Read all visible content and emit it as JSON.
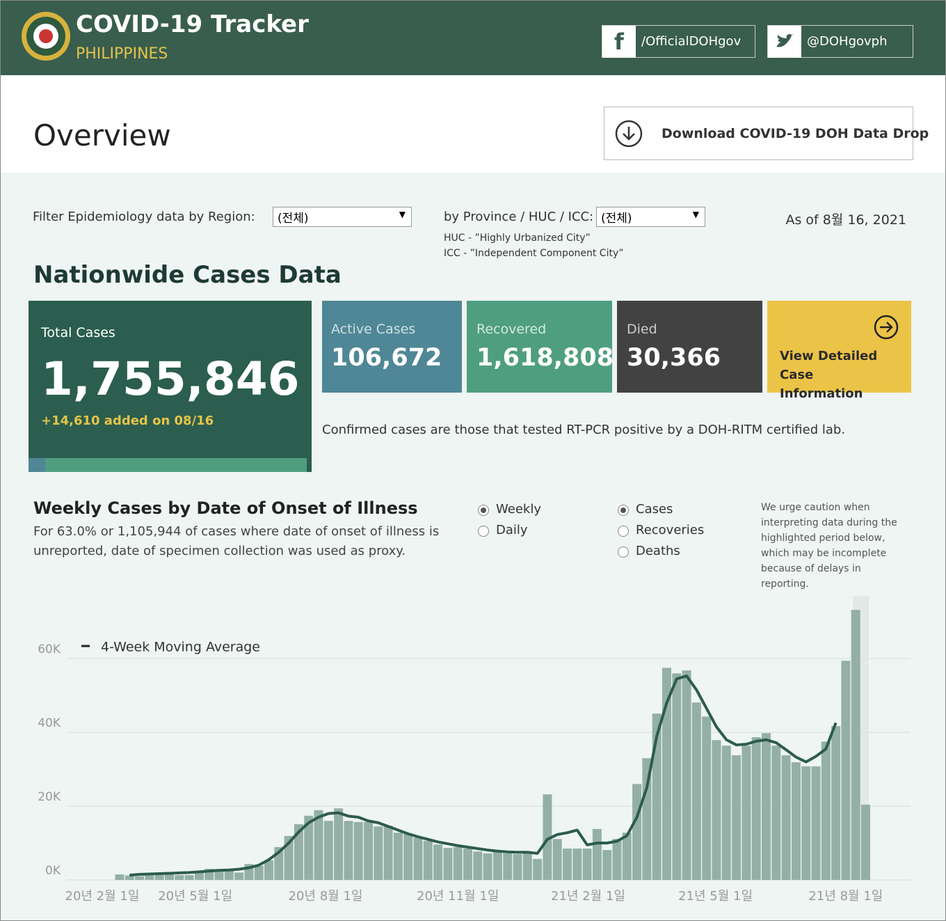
{
  "header": {
    "title": "COVID-19 Tracker",
    "subtitle": "PHILIPPINES",
    "facebook": "/OfficialDOHgov",
    "twitter": "@DOHgovph"
  },
  "overview": {
    "title": "Overview",
    "download": "Download COVID-19 DOH Data Drop"
  },
  "filters": {
    "region_label": "Filter Epidemiology data by Region:",
    "region_value": "(전체)",
    "province_label": "by Province / HUC / ICC:",
    "province_value": "(전체)",
    "huc_note": "HUC - ”Highly Urbanized City”",
    "icc_note": "ICC - ”Independent Component City”",
    "as_of": "As of 8월 16, 2021"
  },
  "nationwide": {
    "title": "Nationwide Cases Data",
    "total_label": "Total Cases",
    "total_value": "1,755,846",
    "added": "+14,610 added on 08/16",
    "active_label": "Active Cases",
    "active_value": "106,672",
    "recovered_label": "Recovered",
    "recovered_value": "1,618,808",
    "died_label": "Died",
    "died_value": "30,366",
    "view_detail": "View Detailed Case Information",
    "note": "Confirmed cases are those that tested RT-PCR positive by a DOH-RITM certified lab."
  },
  "weekly": {
    "title": "Weekly Cases by Date of Onset of Illness",
    "description": "For 63.0% or 1,105,944 of cases where date of onset of illness is unreported, date of specimen collection was used as proxy.",
    "period_options": [
      "Weekly",
      "Daily"
    ],
    "period_selected": 0,
    "metric_options": [
      "Cases",
      "Recoveries",
      "Deaths"
    ],
    "metric_selected": 0,
    "caution": "We urge caution when interpreting data during the highlighted period below, which may be incomplete because of delays in reporting."
  },
  "chart_data": {
    "type": "bar",
    "categories": [
      null,
      null,
      null,
      null,
      null,
      null,
      null,
      null,
      null,
      null,
      null,
      null,
      null,
      null,
      null,
      null,
      null,
      null,
      null,
      null,
      null,
      null,
      null,
      null,
      null,
      null,
      null,
      null,
      null,
      null,
      null,
      null,
      null,
      null,
      null,
      null,
      null,
      null,
      null,
      null,
      null,
      null,
      null,
      null,
      null,
      null,
      null,
      null,
      null,
      null,
      null,
      null,
      null,
      null,
      null,
      null,
      null,
      null,
      null,
      null,
      null,
      null,
      null,
      null,
      null,
      null,
      null,
      null,
      null,
      null,
      null,
      null,
      null,
      null,
      null,
      null
    ],
    "series": [
      {
        "type": "bar",
        "color": "#94b0a6",
        "values": [
          1.5,
          1.2,
          1,
          1.2,
          1.3,
          2,
          1.3,
          1.3,
          2,
          3,
          2.5,
          2.5,
          2,
          4.3,
          3.8,
          5.3,
          8.9,
          11.9,
          15.1,
          17.4,
          18.9,
          16,
          19.4,
          16,
          15.7,
          15.7,
          14.5,
          14.7,
          12.8,
          12.5,
          11.5,
          10.6,
          9.6,
          8.7,
          8.9,
          8.5,
          7.7,
          7.2,
          8.1,
          7.2,
          7,
          7.4,
          5.7,
          23.2,
          11.1,
          8.5,
          8.5,
          8.5,
          13.8,
          8.1,
          11.1,
          12.8,
          26,
          33,
          45.1,
          57.5,
          56,
          56.8,
          48.1,
          44.3,
          37.9,
          36.4,
          33.8,
          36.4,
          38.7,
          39.8,
          36.4,
          33.8,
          31.9,
          30.8,
          30.8,
          37.5,
          41.7,
          59.4,
          73.2,
          20.4
        ]
      },
      {
        "type": "line",
        "name": "4-Week Moving Average",
        "color": "#2d5c4a",
        "values": [
          null,
          1.3,
          1.5,
          1.6,
          1.7,
          1.8,
          1.9,
          2,
          2.2,
          2.4,
          2.6,
          2.7,
          2.9,
          3.3,
          4,
          5.5,
          7.5,
          10,
          13,
          15.5,
          17,
          18,
          18.2,
          17.3,
          17,
          16,
          15.5,
          14.5,
          13.5,
          12.5,
          11.7,
          11,
          10.3,
          9.8,
          9.3,
          8.9,
          8.5,
          8.1,
          7.8,
          7.6,
          7.5,
          7.5,
          7.2,
          11,
          12.3,
          12.8,
          13.5,
          9.5,
          10,
          10,
          10.5,
          12,
          17,
          25,
          39,
          48,
          54.5,
          55.3,
          51.5,
          46.5,
          41.5,
          38,
          36.6,
          36.8,
          37.6,
          38,
          37.2,
          35.3,
          33.3,
          32,
          33.5,
          35.5,
          42.6,
          null,
          null,
          null
        ]
      }
    ],
    "ylim": [
      0,
      77
    ],
    "yticks": [
      {
        "value": 0,
        "label": "0K"
      },
      {
        "value": 20,
        "label": "20K"
      },
      {
        "value": 40,
        "label": "40K"
      },
      {
        "value": 60,
        "label": "60K"
      }
    ],
    "xticks": [
      {
        "value": -1.75,
        "label": "20년 2월 1일"
      },
      {
        "value": 7.6,
        "label": "20년 5월 1일"
      },
      {
        "value": 20.7,
        "label": "20년 8월 1일"
      },
      {
        "value": 34,
        "label": "20년 11월 1일"
      },
      {
        "value": 47.1,
        "label": "21년 2월 1일"
      },
      {
        "value": 59.9,
        "label": "21년 5월 1일"
      },
      {
        "value": 73,
        "label": "21년 8월 1일"
      }
    ],
    "grid": true,
    "legend": "top-left"
  }
}
